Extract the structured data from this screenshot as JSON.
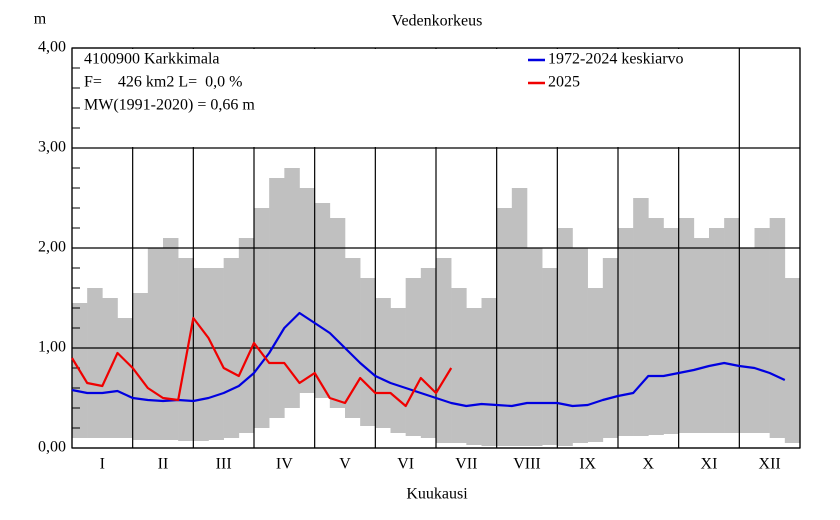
{
  "chart_data": {
    "type": "line",
    "title": "Vedenkorkeus",
    "y_label": "m",
    "x_label": "Kuukausi",
    "annotations": [
      "4100900 Karkkimala",
      "F=    426 km2 L=  0,0 %",
      "MW(1991-2020) = 0,66 m"
    ],
    "categories": [
      null,
      null,
      "I",
      null,
      null,
      null,
      "II",
      null,
      null,
      null,
      "III",
      null,
      null,
      null,
      "IV",
      null,
      null,
      null,
      "V",
      null,
      null,
      null,
      "VI",
      null,
      null,
      null,
      "VII",
      null,
      null,
      null,
      "VIII",
      null,
      null,
      null,
      "IX",
      null,
      null,
      null,
      "X",
      null,
      null,
      null,
      "XI",
      null,
      null,
      null,
      "XII",
      null
    ],
    "ylim": [
      0,
      4
    ],
    "yticks": [
      {
        "value": 0,
        "label": "0,00"
      },
      {
        "value": 1,
        "label": "1,00"
      },
      {
        "value": 2,
        "label": "2,00"
      },
      {
        "value": 3,
        "label": "3,00"
      },
      {
        "value": 4,
        "label": "4,00"
      }
    ],
    "minor_yticks": [
      0.2,
      0.4,
      0.6,
      0.8,
      1.2,
      1.4,
      1.6,
      1.8,
      2.2,
      2.4,
      2.6,
      2.8,
      3.2,
      3.4,
      3.6,
      3.8
    ],
    "grid": true,
    "range": {
      "color": "#c0c0c0",
      "high": [
        1.45,
        1.6,
        1.5,
        1.3,
        1.55,
        2.0,
        2.1,
        1.9,
        1.8,
        1.8,
        1.9,
        2.1,
        2.4,
        2.7,
        2.8,
        2.6,
        2.45,
        2.3,
        1.9,
        1.7,
        1.5,
        1.4,
        1.7,
        1.8,
        1.9,
        1.6,
        1.4,
        1.5,
        2.4,
        2.6,
        2.0,
        1.8,
        2.2,
        2.0,
        1.6,
        1.9,
        2.2,
        2.5,
        2.3,
        2.2,
        2.3,
        2.1,
        2.2,
        2.3,
        2.0,
        2.2,
        2.3,
        1.7
      ],
      "low": [
        0.1,
        0.1,
        0.1,
        0.1,
        0.08,
        0.08,
        0.08,
        0.07,
        0.07,
        0.08,
        0.1,
        0.15,
        0.2,
        0.3,
        0.4,
        0.55,
        0.5,
        0.4,
        0.3,
        0.22,
        0.2,
        0.15,
        0.12,
        0.1,
        0.05,
        0.05,
        0.03,
        0.02,
        0.02,
        0.02,
        0.02,
        0.03,
        0.02,
        0.05,
        0.06,
        0.1,
        0.12,
        0.12,
        0.13,
        0.14,
        0.15,
        0.15,
        0.15,
        0.15,
        0.15,
        0.15,
        0.1,
        0.05
      ]
    },
    "series": [
      {
        "name": "1972-2024 keskiarvo",
        "color": "#0000e0",
        "values": [
          0.58,
          0.55,
          0.55,
          0.57,
          0.5,
          0.48,
          0.47,
          0.48,
          0.47,
          0.5,
          0.55,
          0.62,
          0.75,
          0.95,
          1.2,
          1.35,
          1.25,
          1.15,
          1.0,
          0.85,
          0.72,
          0.65,
          0.6,
          0.55,
          0.5,
          0.45,
          0.42,
          0.44,
          0.43,
          0.42,
          0.45,
          0.45,
          0.45,
          0.42,
          0.43,
          0.48,
          0.52,
          0.55,
          0.72,
          0.72,
          0.75,
          0.78,
          0.82,
          0.85,
          0.82,
          0.8,
          0.75,
          0.68
        ]
      },
      {
        "name": "2025",
        "color": "#f00000",
        "values": [
          0.9,
          0.65,
          0.62,
          0.95,
          0.8,
          0.6,
          0.5,
          0.48,
          1.3,
          1.1,
          0.8,
          0.72,
          1.05,
          0.85,
          0.85,
          0.65,
          0.75,
          0.5,
          0.45,
          0.7,
          0.55,
          0.55,
          0.42,
          0.7,
          0.55,
          0.8,
          null,
          null,
          null,
          null,
          null,
          null,
          null,
          null,
          null,
          null,
          null,
          null,
          null,
          null,
          null,
          null,
          null,
          null,
          null,
          null,
          null,
          null
        ]
      }
    ]
  }
}
